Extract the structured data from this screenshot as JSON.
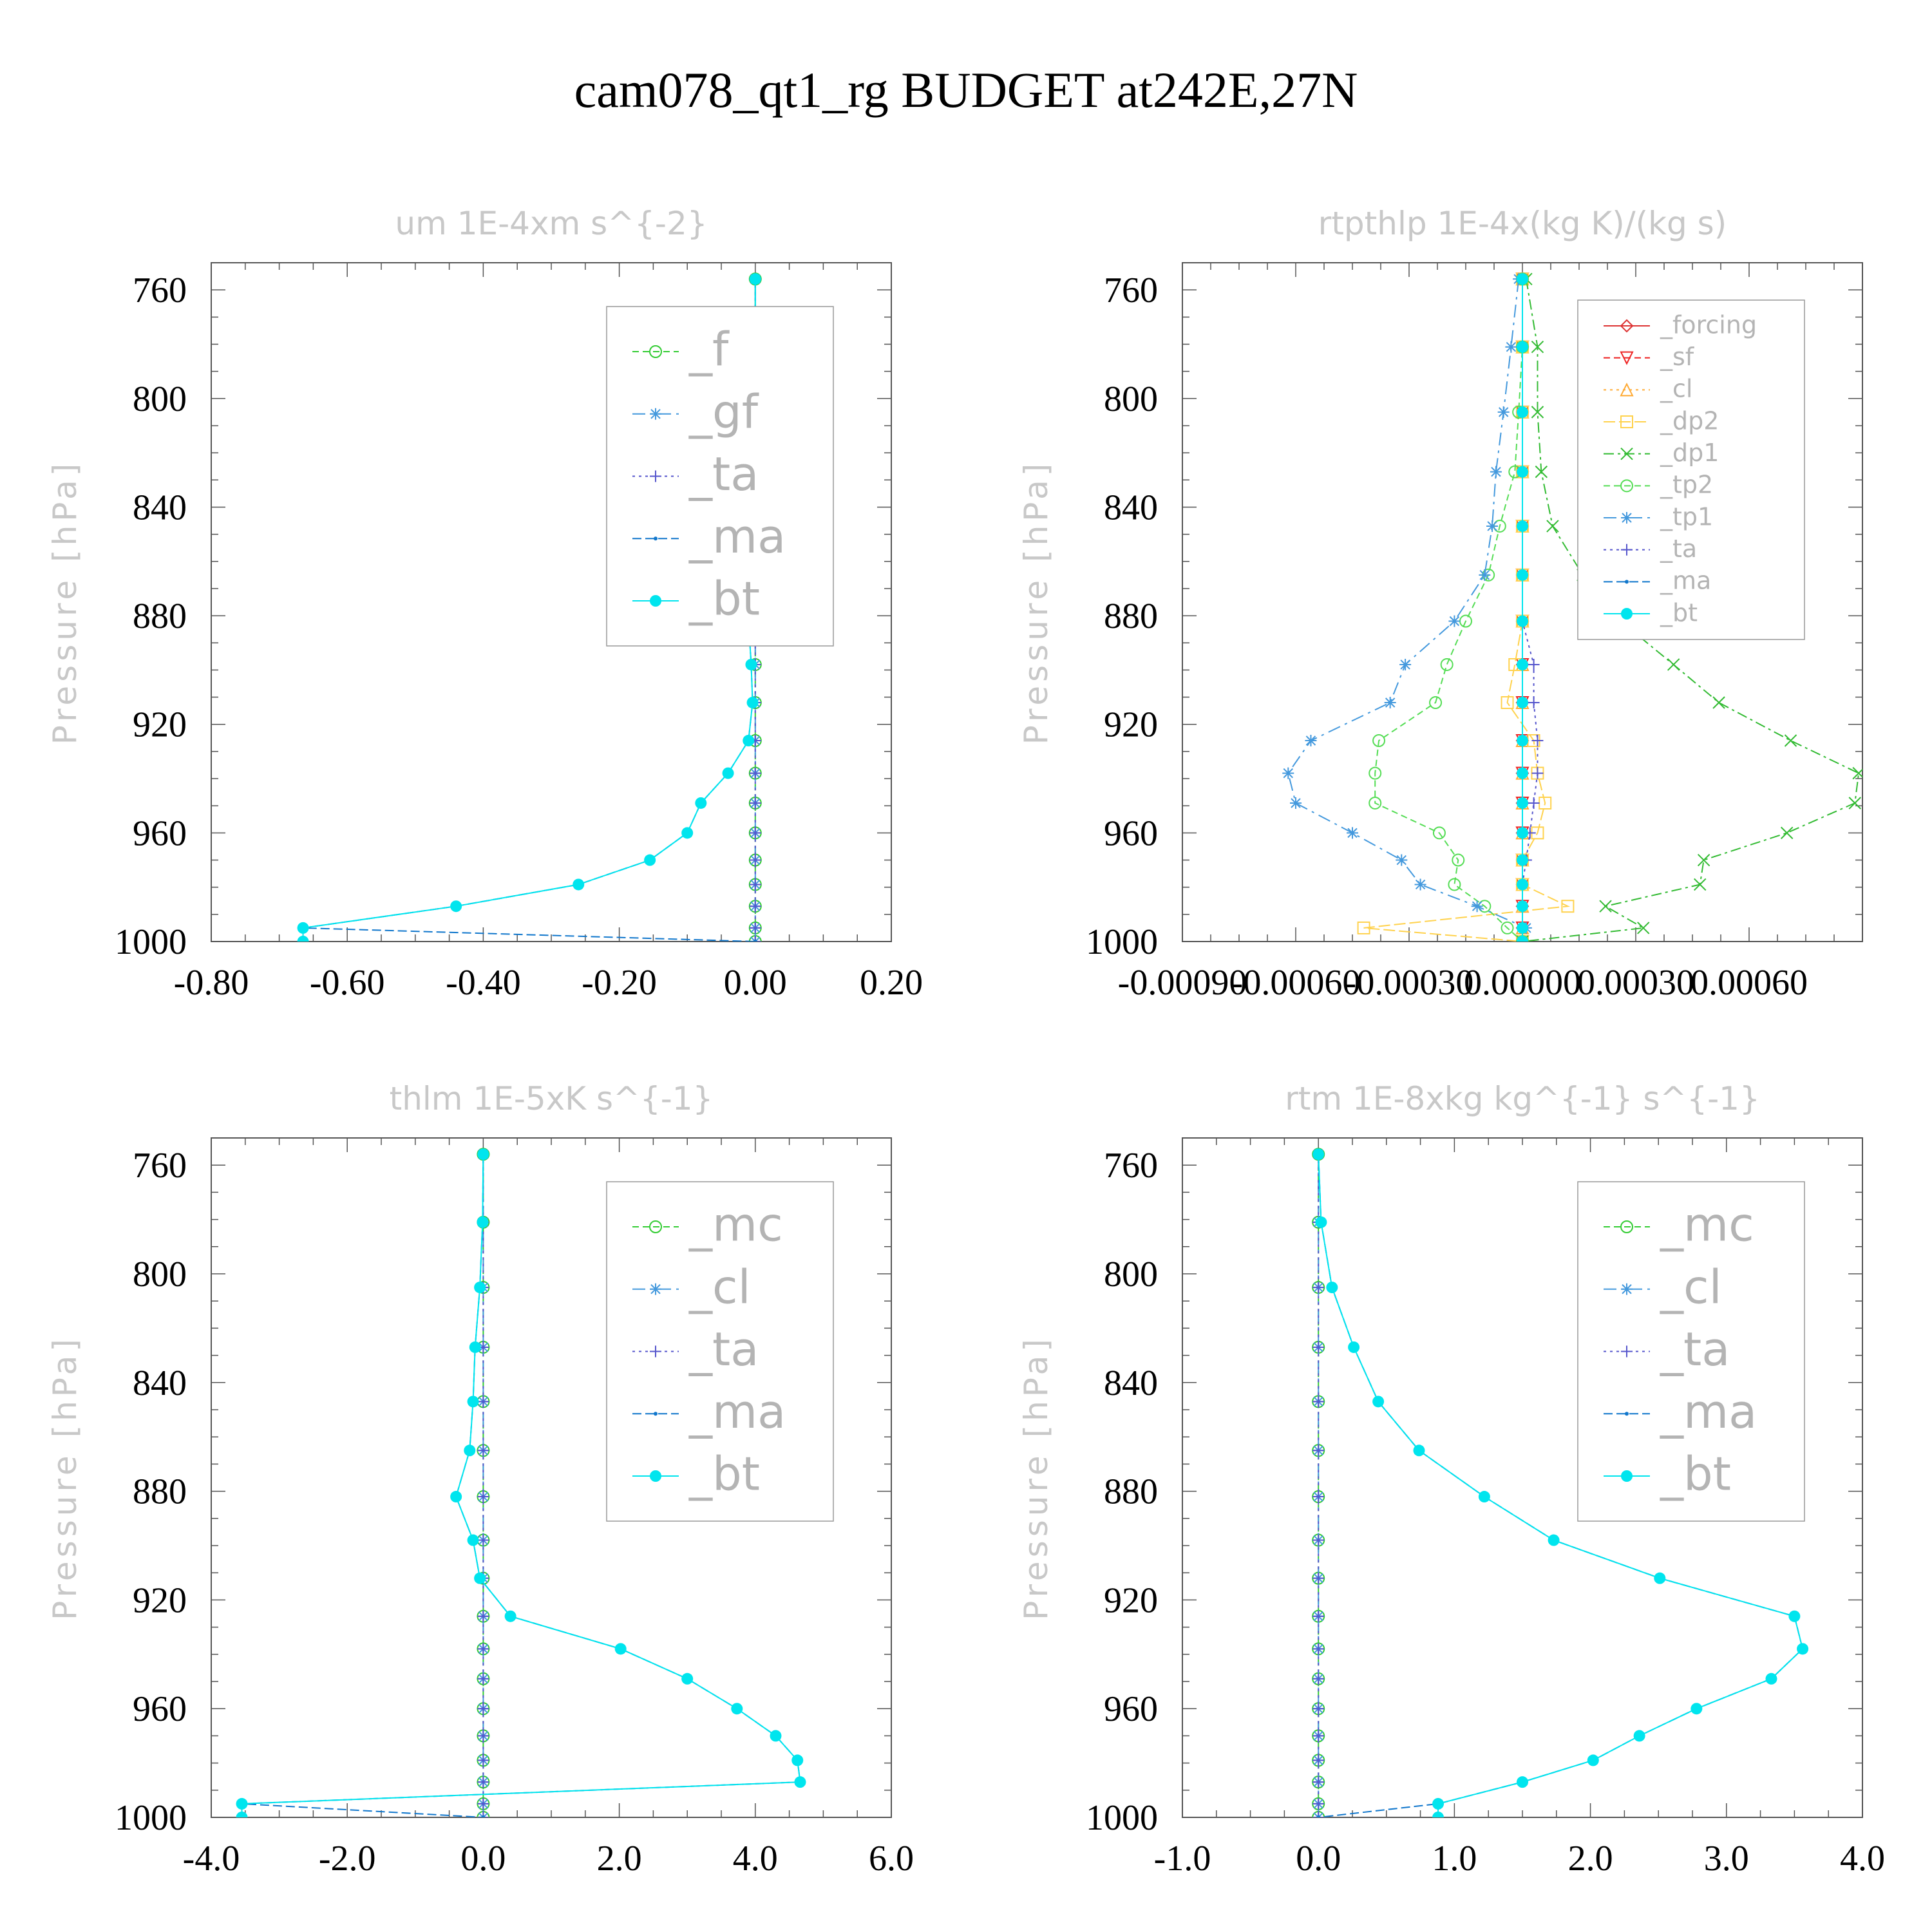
{
  "title": "cam078_qt1_rg  BUDGET at242E,27N",
  "chart_data": [
    {
      "type": "line",
      "title": "um   1E-4xm s^{-2}",
      "ylabel": "Pressure [hPa]",
      "xlim": [
        -0.8,
        0.2
      ],
      "xticks": [
        "-0.80",
        "-0.60",
        "-0.40",
        "-0.20",
        "0.00",
        "0.20"
      ],
      "xtick_values": [
        -0.8,
        -0.6,
        -0.4,
        -0.2,
        0.0,
        0.2
      ],
      "ylim": [
        1000,
        750
      ],
      "yticks": [
        "760",
        "800",
        "840",
        "880",
        "920",
        "960",
        "1000"
      ],
      "ytick_values": [
        760,
        800,
        840,
        880,
        920,
        960,
        1000
      ],
      "legend": {
        "position": "top-right",
        "size": "large",
        "entries": [
          "_f",
          "_gf",
          "_ta",
          "_ma",
          "_bt"
        ]
      },
      "pressure": [
        756,
        781,
        805,
        827,
        847,
        865,
        882,
        898,
        912,
        926,
        938,
        949,
        960,
        970,
        979,
        987,
        995,
        1000
      ],
      "series": [
        {
          "name": "_f",
          "color": "#33cc33",
          "marker": "circle",
          "dash": "10,6",
          "values": [
            0,
            0,
            0,
            0,
            0,
            0,
            0,
            0,
            0,
            0,
            0,
            0,
            0,
            0,
            0,
            0,
            0,
            0
          ]
        },
        {
          "name": "_gf",
          "color": "#4499dd",
          "marker": "star",
          "dash": "20,8,4,8",
          "values": [
            0,
            0,
            0,
            0,
            0,
            0,
            0,
            0,
            0,
            0,
            0,
            0,
            0,
            0,
            0,
            0,
            0,
            0
          ]
        },
        {
          "name": "_ta",
          "color": "#5555cc",
          "marker": "plus",
          "dash": "4,6",
          "values": [
            0,
            0,
            0,
            0,
            0,
            0,
            0,
            0,
            0,
            0,
            0,
            0,
            0,
            0,
            0,
            0,
            0,
            0
          ]
        },
        {
          "name": "_ma",
          "color": "#1177cc",
          "marker": "dot",
          "dash": "14,6",
          "values": [
            0.0,
            0.0,
            -0.002,
            -0.003,
            -0.004,
            -0.005,
            -0.01,
            -0.006,
            -0.004,
            -0.01,
            -0.04,
            -0.08,
            -0.1,
            -0.155,
            -0.26,
            -0.44,
            -0.665,
            0.0
          ]
        },
        {
          "name": "_bt",
          "color": "#00e5ee",
          "marker": "bigdot",
          "dash": "none",
          "values": [
            0.0,
            0.0,
            -0.002,
            -0.003,
            -0.004,
            -0.005,
            -0.01,
            -0.006,
            -0.004,
            -0.01,
            -0.04,
            -0.08,
            -0.1,
            -0.155,
            -0.26,
            -0.44,
            -0.665,
            -0.665
          ]
        }
      ]
    },
    {
      "type": "line",
      "title": "rtpthlp   1E-4x(kg K)/(kg s)",
      "ylabel": "Pressure [hPa]",
      "xlim": [
        -0.0009,
        0.0009
      ],
      "xticks": [
        "-0.00090",
        "-0.00060",
        "-0.00030",
        "0.00000",
        "0.00030",
        "0.00060"
      ],
      "xtick_values": [
        -0.0009,
        -0.0006,
        -0.0003,
        0.0,
        0.0003,
        0.0006
      ],
      "ylim": [
        1000,
        750
      ],
      "yticks": [
        "760",
        "800",
        "840",
        "880",
        "920",
        "960",
        "1000"
      ],
      "ytick_values": [
        760,
        800,
        840,
        880,
        920,
        960,
        1000
      ],
      "legend": {
        "position": "top-right",
        "size": "small",
        "entries": [
          "_forcing",
          "_sf",
          "_cl",
          "_dp2",
          "_dp1",
          "_tp2",
          "_tp1",
          "_ta",
          "_ma",
          "_bt"
        ]
      },
      "pressure": [
        756,
        781,
        805,
        827,
        847,
        865,
        882,
        898,
        912,
        926,
        938,
        949,
        960,
        970,
        979,
        987,
        995,
        1000
      ],
      "series": [
        {
          "name": "_forcing",
          "color": "#dd3333",
          "marker": "diamond",
          "dash": "none",
          "values": [
            0,
            0,
            0,
            0,
            0,
            0,
            0,
            0,
            0,
            0,
            0,
            0,
            0,
            0,
            0,
            0,
            0,
            0
          ]
        },
        {
          "name": "_sf",
          "color": "#ee2222",
          "marker": "triangle-down",
          "dash": "10,6",
          "values": [
            0,
            0,
            0,
            0,
            0,
            0,
            0,
            0,
            0,
            0,
            0,
            0,
            0,
            0,
            0,
            0,
            0,
            0
          ]
        },
        {
          "name": "_cl",
          "color": "#ffaa33",
          "marker": "triangle",
          "dash": "4,6",
          "values": [
            0,
            0,
            0,
            0,
            0,
            0,
            0,
            0,
            0,
            0,
            0,
            0,
            0,
            0,
            0,
            0,
            0,
            0
          ]
        },
        {
          "name": "_dp2",
          "color": "#ffd24d",
          "marker": "square",
          "dash": "18,6",
          "values": [
            0.0,
            0.0,
            0.0,
            0.0,
            0.0,
            0.0,
            0.0,
            -2e-05,
            -4e-05,
            3e-05,
            4e-05,
            6e-05,
            4e-05,
            0.0,
            0.0,
            0.00012,
            -0.00042,
            0.0
          ]
        },
        {
          "name": "_dp1",
          "color": "#33bb33",
          "marker": "x",
          "dash": "16,6,4,6",
          "values": [
            1e-05,
            4e-05,
            4e-05,
            5e-05,
            8e-05,
            0.00016,
            0.00026,
            0.0004,
            0.00052,
            0.00071,
            0.00089,
            0.00088,
            0.0007,
            0.00048,
            0.00047,
            0.00022,
            0.00032,
            0.0
          ]
        },
        {
          "name": "_tp2",
          "color": "#55dd55",
          "marker": "circle",
          "dash": "10,6",
          "values": [
            0.0,
            0.0,
            -1e-05,
            -2e-05,
            -6e-05,
            -9e-05,
            -0.00015,
            -0.0002,
            -0.00023,
            -0.00038,
            -0.00039,
            -0.00039,
            -0.00022,
            -0.00017,
            -0.00018,
            -0.0001,
            -4e-05,
            0.0
          ]
        },
        {
          "name": "_tp1",
          "color": "#4499dd",
          "marker": "star",
          "dash": "20,8,4,8",
          "values": [
            -1e-05,
            -3e-05,
            -5e-05,
            -7e-05,
            -8e-05,
            -0.0001,
            -0.00018,
            -0.00031,
            -0.00035,
            -0.00056,
            -0.00062,
            -0.0006,
            -0.00045,
            -0.00032,
            -0.00027,
            -0.00012,
            1e-05,
            0.0
          ]
        },
        {
          "name": "_ta",
          "color": "#5555cc",
          "marker": "plus",
          "dash": "4,6",
          "values": [
            0.0,
            0.0,
            0.0,
            0.0,
            0.0,
            0.0,
            0.0,
            3e-05,
            3e-05,
            4e-05,
            4e-05,
            3e-05,
            2e-05,
            1e-05,
            0.0,
            0.0,
            0.0,
            0.0
          ]
        },
        {
          "name": "_ma",
          "color": "#1177cc",
          "marker": "dot",
          "dash": "14,6",
          "values": [
            0,
            0,
            0,
            0,
            0,
            0,
            0,
            0,
            0,
            0,
            0,
            0,
            0,
            0,
            0,
            0,
            0,
            0
          ]
        },
        {
          "name": "_bt",
          "color": "#00e5ee",
          "marker": "bigdot",
          "dash": "none",
          "values": [
            0,
            0,
            0,
            0,
            0,
            0,
            0,
            0,
            0,
            0,
            0,
            0,
            0,
            0,
            0,
            0,
            0,
            0
          ]
        }
      ]
    },
    {
      "type": "line",
      "title": "thlm   1E-5xK s^{-1}",
      "ylabel": "Pressure [hPa]",
      "xlim": [
        -4.0,
        6.0
      ],
      "xticks": [
        "-4.0",
        "-2.0",
        "0.0",
        "2.0",
        "4.0",
        "6.0"
      ],
      "xtick_values": [
        -4.0,
        -2.0,
        0.0,
        2.0,
        4.0,
        6.0
      ],
      "ylim": [
        1000,
        750
      ],
      "yticks": [
        "760",
        "800",
        "840",
        "880",
        "920",
        "960",
        "1000"
      ],
      "ytick_values": [
        760,
        800,
        840,
        880,
        920,
        960,
        1000
      ],
      "legend": {
        "position": "top-right",
        "size": "large",
        "entries": [
          "_mc",
          "_cl",
          "_ta",
          "_ma",
          "_bt"
        ]
      },
      "pressure": [
        756,
        781,
        805,
        827,
        847,
        865,
        882,
        898,
        912,
        926,
        938,
        949,
        960,
        970,
        979,
        987,
        995,
        1000
      ],
      "series": [
        {
          "name": "_mc",
          "color": "#33cc33",
          "marker": "circle",
          "dash": "10,6",
          "values": [
            0,
            0,
            0,
            0,
            0,
            0,
            0,
            0,
            0,
            0,
            0,
            0,
            0,
            0,
            0,
            0,
            0,
            0
          ]
        },
        {
          "name": "_cl",
          "color": "#4499dd",
          "marker": "star",
          "dash": "20,8,4,8",
          "values": [
            0,
            0,
            0,
            0,
            0,
            0,
            0,
            0,
            0,
            0,
            0,
            0,
            0,
            0,
            0,
            0,
            0,
            0
          ]
        },
        {
          "name": "_ta",
          "color": "#5555cc",
          "marker": "plus",
          "dash": "4,6",
          "values": [
            0,
            0,
            0,
            0,
            0,
            0,
            0,
            0,
            0,
            0,
            0,
            0,
            0,
            0,
            0,
            0,
            0,
            0
          ]
        },
        {
          "name": "_ma",
          "color": "#1177cc",
          "marker": "dot",
          "dash": "14,6",
          "values": [
            0.0,
            -0.01,
            -0.05,
            -0.12,
            -0.15,
            -0.2,
            -0.4,
            -0.15,
            -0.05,
            0.4,
            2.02,
            3.0,
            3.73,
            4.3,
            4.62,
            4.66,
            -3.55,
            0.0
          ]
        },
        {
          "name": "_bt",
          "color": "#00e5ee",
          "marker": "bigdot",
          "dash": "none",
          "values": [
            0.0,
            -0.01,
            -0.05,
            -0.12,
            -0.15,
            -0.2,
            -0.4,
            -0.15,
            -0.05,
            0.4,
            2.02,
            3.0,
            3.73,
            4.3,
            4.62,
            4.66,
            -3.55,
            -3.55
          ]
        }
      ]
    },
    {
      "type": "line",
      "title": "rtm   1E-8xkg kg^{-1} s^{-1}",
      "ylabel": "Pressure [hPa]",
      "xlim": [
        -1.0,
        4.0
      ],
      "xticks": [
        "-1.0",
        "0.0",
        "1.0",
        "2.0",
        "3.0",
        "4.0"
      ],
      "xtick_values": [
        -1.0,
        0.0,
        1.0,
        2.0,
        3.0,
        4.0
      ],
      "ylim": [
        1000,
        750
      ],
      "yticks": [
        "760",
        "800",
        "840",
        "880",
        "920",
        "960",
        "1000"
      ],
      "ytick_values": [
        760,
        800,
        840,
        880,
        920,
        960,
        1000
      ],
      "legend": {
        "position": "top-right",
        "size": "large",
        "entries": [
          "_mc",
          "_cl",
          "_ta",
          "_ma",
          "_bt"
        ]
      },
      "pressure": [
        756,
        781,
        805,
        827,
        847,
        865,
        882,
        898,
        912,
        926,
        938,
        949,
        960,
        970,
        979,
        987,
        995,
        1000
      ],
      "series": [
        {
          "name": "_mc",
          "color": "#33cc33",
          "marker": "circle",
          "dash": "10,6",
          "values": [
            0,
            0,
            0,
            0,
            0,
            0,
            0,
            0,
            0,
            0,
            0,
            0,
            0,
            0,
            0,
            0,
            0,
            0
          ]
        },
        {
          "name": "_cl",
          "color": "#4499dd",
          "marker": "star",
          "dash": "20,8,4,8",
          "values": [
            0,
            0,
            0,
            0,
            0,
            0,
            0,
            0,
            0,
            0,
            0,
            0,
            0,
            0,
            0,
            0,
            0,
            0
          ]
        },
        {
          "name": "_ta",
          "color": "#5555cc",
          "marker": "plus",
          "dash": "4,6",
          "values": [
            0,
            0,
            0,
            0,
            0,
            0,
            0,
            0,
            0,
            0,
            0,
            0,
            0,
            0,
            0,
            0,
            0,
            0
          ]
        },
        {
          "name": "_ma",
          "color": "#1177cc",
          "marker": "dot",
          "dash": "14,6",
          "values": [
            0.0,
            0.02,
            0.1,
            0.26,
            0.44,
            0.74,
            1.22,
            1.73,
            2.51,
            3.5,
            3.56,
            3.33,
            2.78,
            2.36,
            2.02,
            1.5,
            0.88,
            0.0
          ]
        },
        {
          "name": "_bt",
          "color": "#00e5ee",
          "marker": "bigdot",
          "dash": "none",
          "values": [
            0.0,
            0.02,
            0.1,
            0.26,
            0.44,
            0.74,
            1.22,
            1.73,
            2.51,
            3.5,
            3.56,
            3.33,
            2.78,
            2.36,
            2.02,
            1.5,
            0.88,
            0.88
          ]
        }
      ]
    }
  ]
}
